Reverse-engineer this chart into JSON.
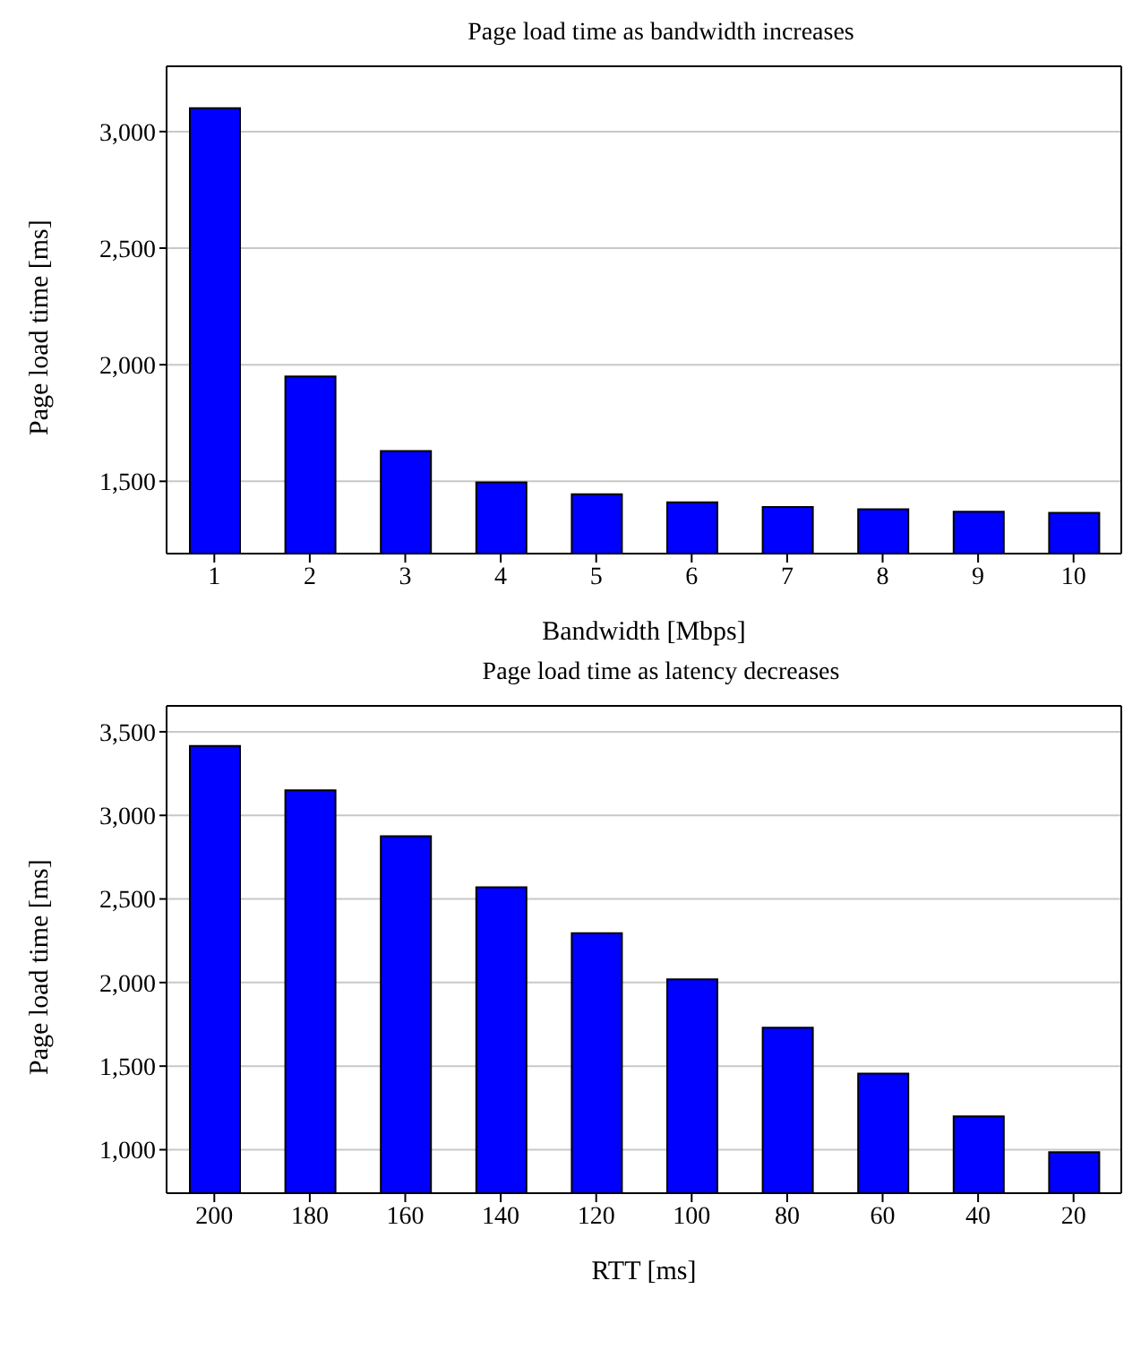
{
  "chart_data": [
    {
      "type": "bar",
      "title": "Page load time as bandwidth increases",
      "xlabel": "Bandwidth [Mbps]",
      "ylabel": "Page load time [ms]",
      "categories": [
        "1",
        "2",
        "3",
        "4",
        "5",
        "6",
        "7",
        "8",
        "9",
        "10"
      ],
      "values": [
        3100,
        1950,
        1630,
        1495,
        1445,
        1410,
        1390,
        1380,
        1370,
        1365
      ],
      "color": "#0000ff",
      "ylim": [
        1190,
        3280
      ],
      "yticks": [
        {
          "value": 1500,
          "label": "1,500"
        },
        {
          "value": 2000,
          "label": "2,000"
        },
        {
          "value": 2500,
          "label": "2,500"
        },
        {
          "value": 3000,
          "label": "3,000"
        }
      ],
      "grid": "y"
    },
    {
      "type": "bar",
      "title": "Page load time as latency decreases",
      "xlabel": "RTT [ms]",
      "ylabel": "Page load time [ms]",
      "categories": [
        "200",
        "180",
        "160",
        "140",
        "120",
        "100",
        "80",
        "60",
        "40",
        "20"
      ],
      "values": [
        3415,
        3150,
        2875,
        2570,
        2295,
        2020,
        1730,
        1455,
        1200,
        985
      ],
      "color": "#0000ff",
      "ylim": [
        740,
        3655
      ],
      "yticks": [
        {
          "value": 1000,
          "label": "1,000"
        },
        {
          "value": 1500,
          "label": "1,500"
        },
        {
          "value": 2000,
          "label": "2,000"
        },
        {
          "value": 2500,
          "label": "2,500"
        },
        {
          "value": 3000,
          "label": "3,000"
        },
        {
          "value": 3500,
          "label": "3,500"
        }
      ],
      "grid": "y"
    }
  ]
}
